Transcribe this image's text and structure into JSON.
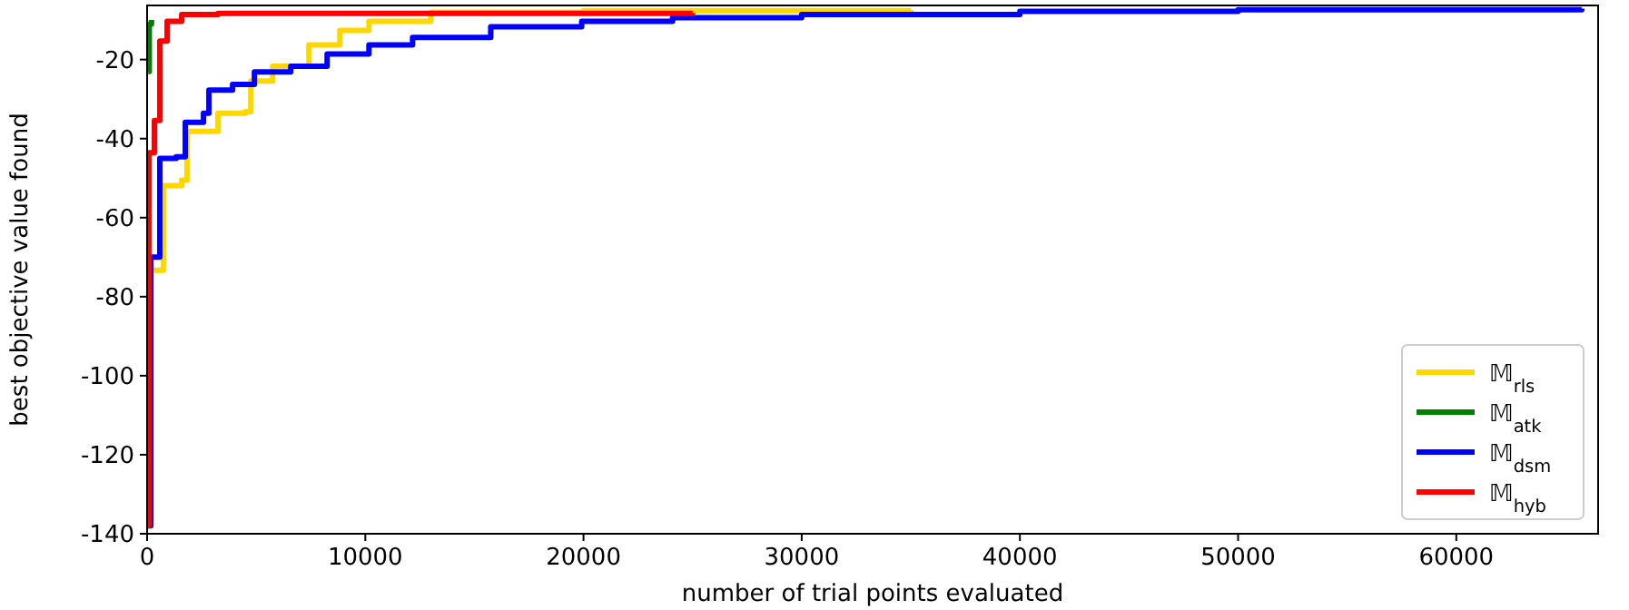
{
  "chart_data": {
    "type": "step",
    "xlabel": "number of trial points evaluated",
    "ylabel": "best objective value found",
    "xlim": [
      0,
      66500
    ],
    "ylim": [
      -140,
      -6.3
    ],
    "xticks": [
      0,
      10000,
      20000,
      30000,
      40000,
      50000,
      60000
    ],
    "yticks": [
      -140,
      -120,
      -100,
      -80,
      -60,
      -40,
      -20
    ],
    "grid": false,
    "legend": "bottom right",
    "line_style": "solid",
    "marker": "none",
    "series": [
      {
        "name": "𝕄$_{rls}$",
        "color": "#ffd700",
        "x": [
          100,
          333,
          750,
          1583,
          1833,
          3250,
          4500,
          4750,
          5750,
          7417,
          8833,
          10167,
          13000,
          20000,
          35000
        ],
        "values": [
          -73.3,
          -73.3,
          -51.9,
          -50.5,
          -38.2,
          -33.6,
          -33.2,
          -25.4,
          -21.7,
          -16.3,
          -12.6,
          -10.3,
          -8,
          -7.6,
          -7.5
        ]
      },
      {
        "name": "𝕄$_{atk}$",
        "color": "#008000",
        "x": [
          50,
          100,
          200
        ],
        "values": [
          -23,
          -11,
          -10
        ]
      },
      {
        "name": "𝕄$_{dsm}$",
        "color": "#0000ff",
        "x": [
          0,
          170,
          583,
          1333,
          1750,
          2583,
          2833,
          3917,
          4917,
          6583,
          8250,
          10167,
          12167,
          15750,
          19917,
          24083,
          30000,
          40000,
          50000,
          65750
        ],
        "values": [
          -138,
          -70,
          -45,
          -44.6,
          -35.9,
          -33.6,
          -27.7,
          -26.3,
          -23.1,
          -21.7,
          -18.6,
          -16.3,
          -14.4,
          -11.7,
          -10.3,
          -9.4,
          -8.6,
          -7.8,
          -7.4,
          -7.1
        ]
      },
      {
        "name": "𝕄$_{hyb}$",
        "color": "#ff0000",
        "x": [
          0,
          80,
          333,
          583,
          917,
          1583,
          3250,
          25000
        ],
        "values": [
          -138,
          -43.6,
          -35.4,
          -15.3,
          -10.3,
          -8.6,
          -8.3,
          -8.2
        ]
      }
    ]
  }
}
